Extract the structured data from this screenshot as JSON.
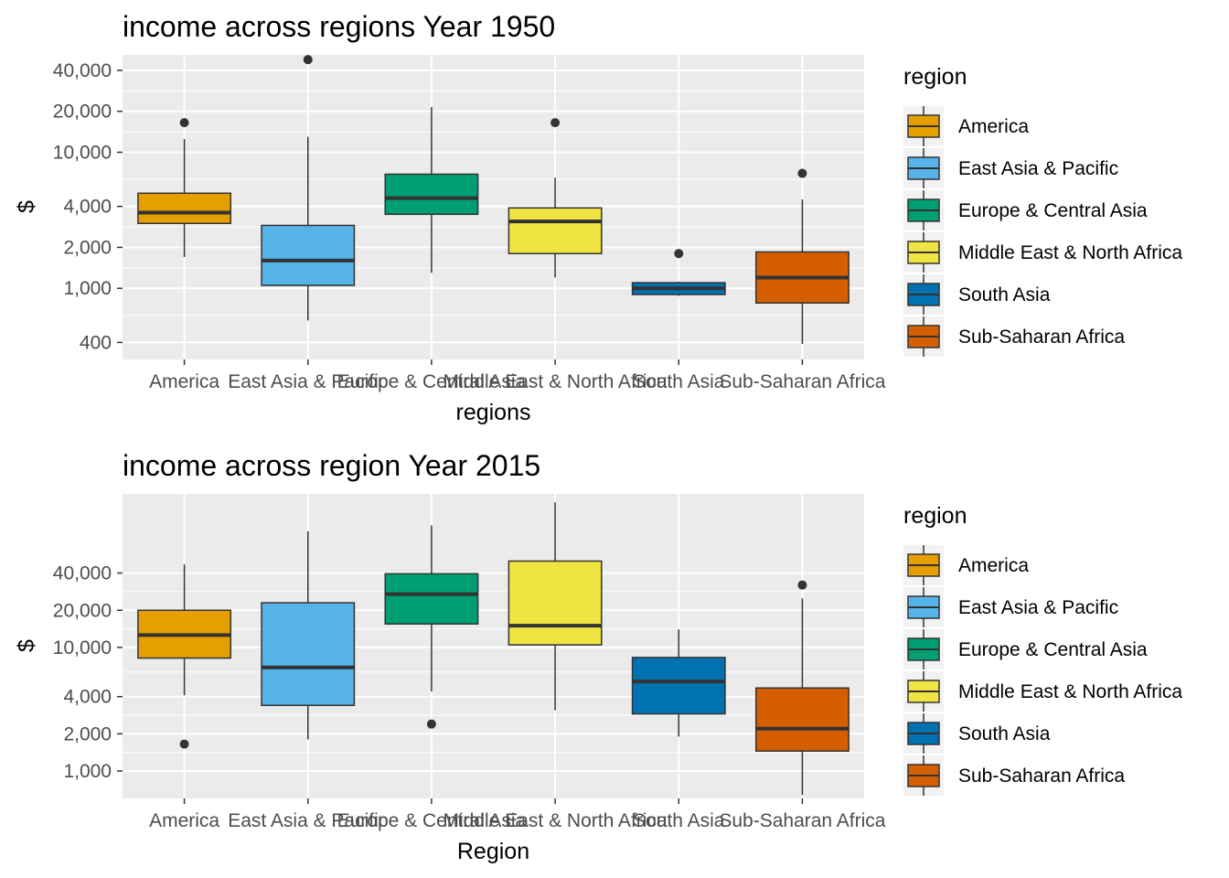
{
  "colors": {
    "America": "#E69F00",
    "East Asia & Pacific": "#56B4E9",
    "Europe & Central Asia": "#009E73",
    "Middle East & North Africa": "#F0E442",
    "South Asia": "#0072B2",
    "Sub-Saharan Africa": "#D55E00",
    "panel_bg": "#EBEBEB",
    "grid": "#FFFFFF",
    "box_line": "#333333"
  },
  "chart_data": [
    {
      "type": "boxplot",
      "title": "income across regions Year 1950",
      "xlabel": "regions",
      "ylabel": "$",
      "y_scale": "log10",
      "ylim": [
        300,
        52000
      ],
      "y_ticks": [
        400,
        1000,
        2000,
        4000,
        10000,
        20000,
        40000
      ],
      "y_tick_labels": [
        "400",
        "1,000",
        "2,000",
        "4,000",
        "10,000",
        "20,000",
        "40,000"
      ],
      "grid": true,
      "legend_title": "region",
      "legend_position": "right",
      "categories": [
        "America",
        "East Asia & Pacific",
        "Europe & Central Asia",
        "Middle East & North Africa",
        "South Asia",
        "Sub-Saharan Africa"
      ],
      "boxes": [
        {
          "region": "America",
          "whisker_low": 1700,
          "q1": 3000,
          "median": 3600,
          "q3": 5000,
          "whisker_high": 12500,
          "outliers": [
            16500
          ]
        },
        {
          "region": "East Asia & Pacific",
          "whisker_low": 580,
          "q1": 1050,
          "median": 1600,
          "q3": 2900,
          "whisker_high": 13000,
          "outliers": [
            48000
          ]
        },
        {
          "region": "Europe & Central Asia",
          "whisker_low": 1300,
          "q1": 3500,
          "median": 4600,
          "q3": 6900,
          "whisker_high": 21500,
          "outliers": []
        },
        {
          "region": "Middle East & North Africa",
          "whisker_low": 1200,
          "q1": 1800,
          "median": 3100,
          "q3": 3900,
          "whisker_high": 6500,
          "outliers": [
            16500
          ]
        },
        {
          "region": "South Asia",
          "whisker_low": 880,
          "q1": 900,
          "median": 1000,
          "q3": 1100,
          "whisker_high": 1120,
          "outliers": [
            1800
          ]
        },
        {
          "region": "Sub-Saharan Africa",
          "whisker_low": 390,
          "q1": 780,
          "median": 1200,
          "q3": 1850,
          "whisker_high": 4500,
          "outliers": [
            7000
          ]
        }
      ]
    },
    {
      "type": "boxplot",
      "title": "income across region Year 2015",
      "xlabel": "Region",
      "ylabel": "$",
      "y_scale": "log10",
      "ylim": [
        600,
        175000
      ],
      "y_ticks": [
        1000,
        2000,
        4000,
        10000,
        20000,
        40000
      ],
      "y_tick_labels": [
        "1,000",
        "2,000",
        "4,000",
        "10,000",
        "20,000",
        "40,000"
      ],
      "grid": true,
      "legend_title": "region",
      "legend_position": "right",
      "categories": [
        "America",
        "East Asia & Pacific",
        "Europe & Central Asia",
        "Middle East & North Africa",
        "South Asia",
        "Sub-Saharan Africa"
      ],
      "boxes": [
        {
          "region": "America",
          "whisker_low": 4100,
          "q1": 8200,
          "median": 12600,
          "q3": 20000,
          "whisker_high": 47000,
          "outliers": [
            1650
          ]
        },
        {
          "region": "East Asia & Pacific",
          "whisker_low": 1800,
          "q1": 3400,
          "median": 6900,
          "q3": 23000,
          "whisker_high": 87000,
          "outliers": []
        },
        {
          "region": "Europe & Central Asia",
          "whisker_low": 4400,
          "q1": 15500,
          "median": 27000,
          "q3": 39500,
          "whisker_high": 97000,
          "outliers": [
            2400
          ]
        },
        {
          "region": "Middle East & North Africa",
          "whisker_low": 3100,
          "q1": 10500,
          "median": 15000,
          "q3": 50000,
          "whisker_high": 150000,
          "outliers": []
        },
        {
          "region": "South Asia",
          "whisker_low": 1900,
          "q1": 2900,
          "median": 5300,
          "q3": 8300,
          "whisker_high": 14000,
          "outliers": []
        },
        {
          "region": "Sub-Saharan Africa",
          "whisker_low": 640,
          "q1": 1450,
          "median": 2200,
          "q3": 4700,
          "whisker_high": 25000,
          "outliers": [
            32000
          ]
        }
      ]
    }
  ]
}
